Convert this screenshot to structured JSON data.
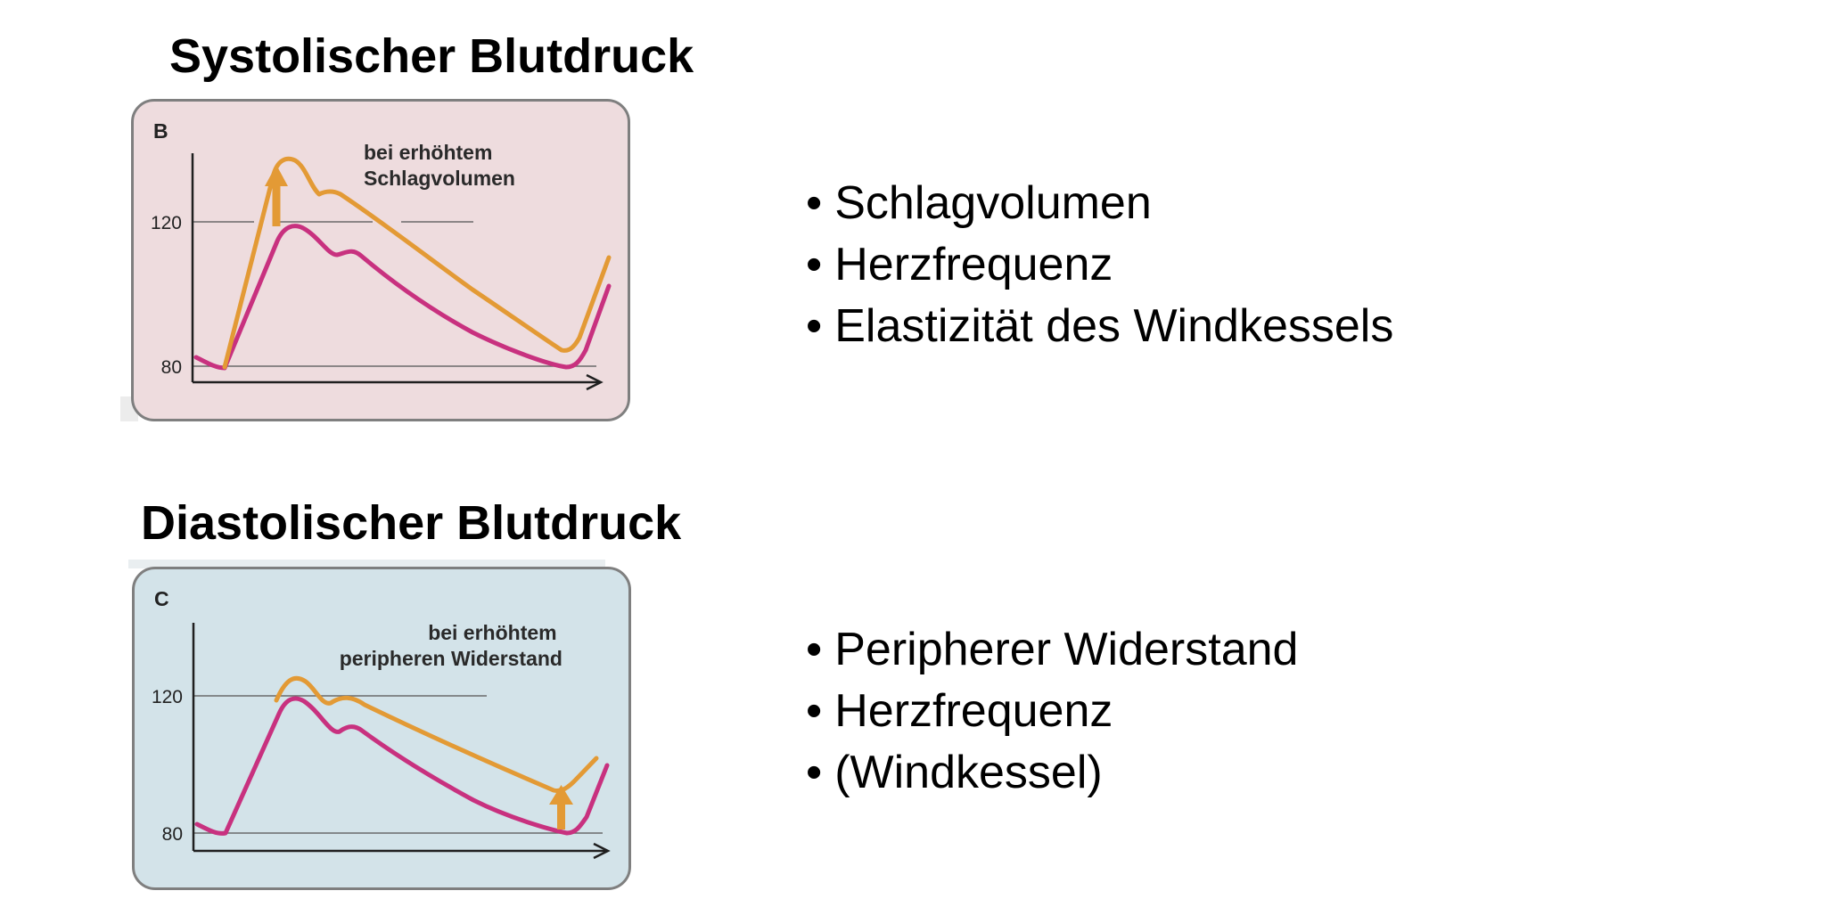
{
  "systolic": {
    "title": "Systolischer Blutdruck",
    "panel_letter": "B",
    "annotation_lines": [
      "bei erhöhtem",
      "Schlagvolumen"
    ],
    "y_ticks": [
      "120",
      "80"
    ],
    "bullets": [
      "Schlagvolumen",
      "Herzfrequenz",
      "Elastizität des Windkessels"
    ],
    "background_color": "#eedcde"
  },
  "diastolic": {
    "title": "Diastolischer Blutdruck",
    "panel_letter": "C",
    "annotation_lines": [
      "bei erhöhtem",
      "peripheren Widerstand"
    ],
    "y_ticks": [
      "120",
      "80"
    ],
    "bullets": [
      "Peripherer Widerstand",
      "Herzfrequenz",
      "(Windkessel)"
    ],
    "background_color": "#d3e3e9"
  },
  "colors": {
    "baseline_curve": "#c8317f",
    "raised_curve": "#e39a35",
    "arrow": "#e39a35",
    "axis": "#1f1f1f",
    "gridline": "#6a6a6a"
  },
  "icons": [
    "up-arrow-icon"
  ]
}
